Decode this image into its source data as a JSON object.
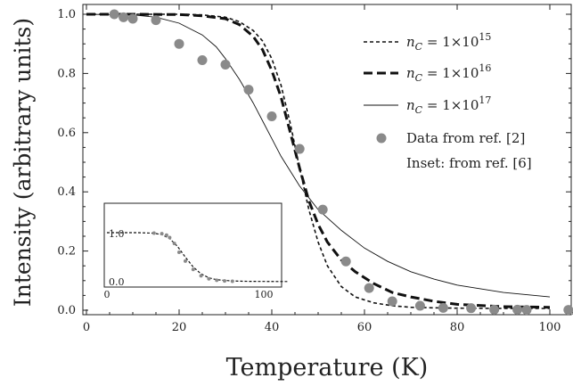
{
  "chart_data": {
    "type": "line",
    "xlabel": "Temperature (K)",
    "ylabel": "Intensity (arbitrary units)",
    "xlim": [
      0,
      105
    ],
    "ylim": [
      0,
      1.0
    ],
    "xticks": [
      0,
      20,
      40,
      60,
      80,
      100
    ],
    "xtick_labels": [
      "0",
      "20",
      "40",
      "60",
      "80",
      "100"
    ],
    "yticks": [
      0.0,
      0.2,
      0.4,
      0.6,
      0.8,
      1.0
    ],
    "ytick_labels": [
      "0.0",
      "0.2",
      "0.4",
      "0.6",
      "0.8",
      "1.0"
    ],
    "legend_placement": "right",
    "series": [
      {
        "name_prefix": "n",
        "name_sub": "C",
        "name_mid": " = 1×10",
        "name_exp": "15",
        "style": "short-dash",
        "x": [
          0,
          10,
          20,
          25,
          30,
          33,
          36,
          38,
          40,
          42,
          44,
          46,
          48,
          50,
          52,
          55,
          58,
          62,
          66,
          70,
          75,
          80,
          90,
          100
        ],
        "y": [
          1.0,
          1.0,
          1.0,
          0.998,
          0.99,
          0.975,
          0.945,
          0.91,
          0.85,
          0.76,
          0.63,
          0.48,
          0.34,
          0.23,
          0.15,
          0.08,
          0.045,
          0.025,
          0.015,
          0.01,
          0.008,
          0.007,
          0.006,
          0.006
        ]
      },
      {
        "name_prefix": "n",
        "name_sub": "C",
        "name_mid": " = 1×10",
        "name_exp": "16",
        "style": "long-dash",
        "x": [
          0,
          10,
          20,
          25,
          30,
          33,
          36,
          38,
          40,
          42,
          44,
          46,
          48,
          50,
          52,
          55,
          58,
          62,
          66,
          70,
          75,
          80,
          90,
          100
        ],
        "y": [
          1.0,
          1.0,
          0.999,
          0.995,
          0.985,
          0.965,
          0.925,
          0.88,
          0.81,
          0.72,
          0.6,
          0.48,
          0.37,
          0.29,
          0.23,
          0.17,
          0.13,
          0.09,
          0.06,
          0.045,
          0.03,
          0.02,
          0.012,
          0.01
        ]
      },
      {
        "name_prefix": "n",
        "name_sub": "C",
        "name_mid": " = 1×10",
        "name_exp": "17",
        "style": "thin-solid",
        "x": [
          0,
          10,
          15,
          20,
          25,
          28,
          30,
          33,
          36,
          38,
          40,
          42,
          44,
          46,
          48,
          50,
          55,
          60,
          65,
          70,
          75,
          80,
          90,
          100
        ],
        "y": [
          1.0,
          0.998,
          0.99,
          0.97,
          0.93,
          0.89,
          0.85,
          0.78,
          0.7,
          0.64,
          0.58,
          0.52,
          0.47,
          0.42,
          0.38,
          0.34,
          0.27,
          0.21,
          0.165,
          0.13,
          0.105,
          0.085,
          0.06,
          0.045
        ]
      }
    ],
    "data_points": {
      "name": "Data from ref. [2]",
      "x": [
        6,
        8,
        10,
        15,
        20,
        25,
        30,
        35,
        40,
        46,
        51,
        56,
        61,
        66,
        72,
        77,
        83,
        88,
        93,
        95,
        104
      ],
      "y": [
        1.0,
        0.99,
        0.985,
        0.98,
        0.9,
        0.845,
        0.83,
        0.745,
        0.655,
        0.545,
        0.34,
        0.165,
        0.075,
        0.03,
        0.015,
        0.008,
        0.007,
        0.002,
        0.002,
        0.001,
        0.001
      ]
    },
    "inset_note": "Inset: from ref. [6]",
    "inset": {
      "xlim": [
        0,
        115
      ],
      "ylim": [
        0,
        1.0
      ],
      "xtick_labels": [
        "0",
        "100"
      ],
      "ytick_labels": [
        "0.0",
        "1.0"
      ],
      "curve_x": [
        0,
        20,
        30,
        35,
        40,
        45,
        50,
        55,
        60,
        65,
        70,
        80,
        90,
        100,
        110,
        115
      ],
      "curve_y": [
        1.0,
        1.0,
        0.99,
        0.96,
        0.88,
        0.72,
        0.5,
        0.3,
        0.16,
        0.08,
        0.04,
        0.015,
        0.008,
        0.005,
        0.004,
        0.004
      ],
      "points_x": [
        30,
        35,
        38,
        40,
        43,
        46,
        50,
        55,
        60,
        65,
        70,
        75,
        80
      ],
      "points_y": [
        0.99,
        0.98,
        0.95,
        0.9,
        0.78,
        0.6,
        0.42,
        0.25,
        0.12,
        0.06,
        0.03,
        0.015,
        0.01
      ]
    }
  }
}
